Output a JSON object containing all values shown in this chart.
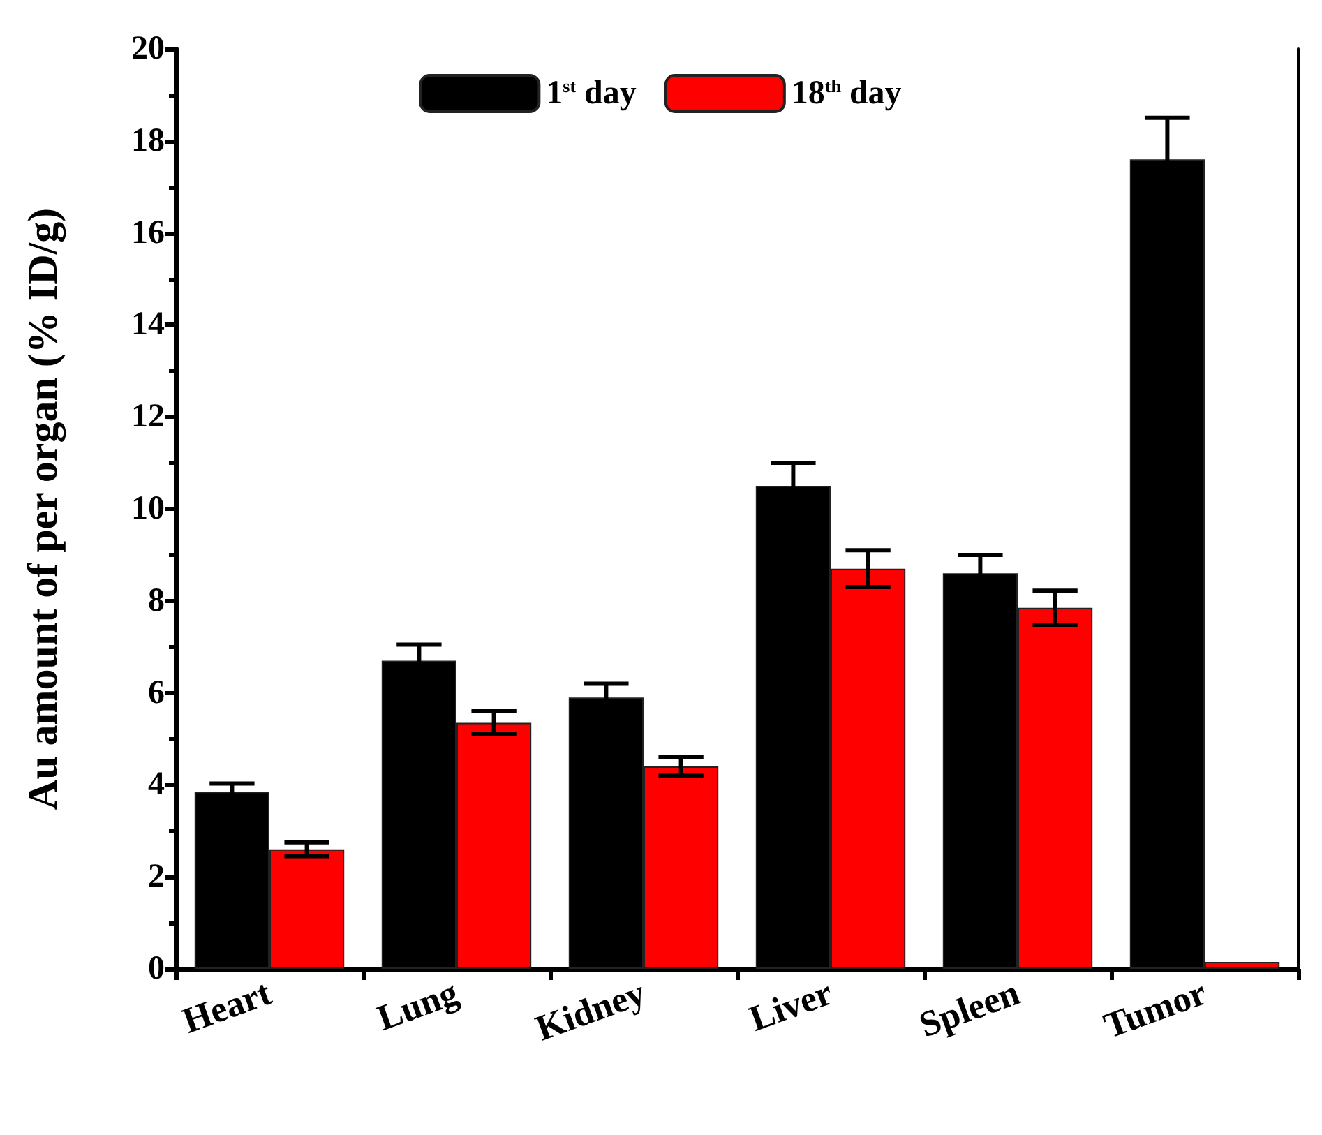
{
  "chart_data": {
    "type": "bar",
    "ylabel": "Au amount of per organ (% ID/g)",
    "categories": [
      "Heart",
      "Lung",
      "Kidney",
      "Liver",
      "Spleen",
      "Tumor"
    ],
    "series": [
      {
        "name": "1$^{st}$ day",
        "color": "#000000",
        "values": [
          3.85,
          6.7,
          5.9,
          10.5,
          8.6,
          17.6
        ],
        "errors": [
          0.18,
          0.35,
          0.3,
          0.5,
          0.4,
          0.9
        ]
      },
      {
        "name": "18$^{th}$ day",
        "color": "#ff0000",
        "values": [
          2.6,
          5.35,
          4.4,
          8.7,
          7.85,
          0.15
        ],
        "errors": [
          0.15,
          0.25,
          0.2,
          0.4,
          0.37,
          null
        ]
      }
    ],
    "ylim": [
      0,
      20
    ],
    "yticks": [
      0,
      2,
      4,
      6,
      8,
      10,
      12,
      14,
      16,
      18,
      20
    ],
    "grid": false,
    "legend": "top"
  }
}
